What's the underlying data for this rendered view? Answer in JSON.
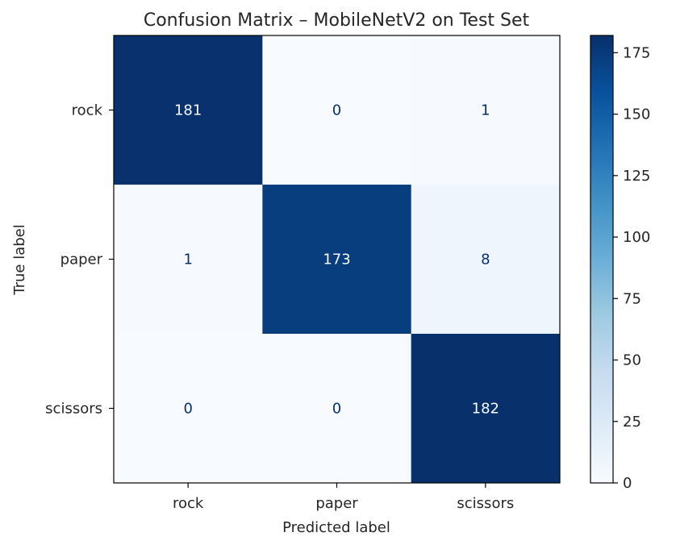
{
  "chart_data": {
    "type": "heatmap",
    "title": "Confusion Matrix – MobileNetV2 on Test Set",
    "xlabel": "Predicted label",
    "ylabel": "True label",
    "x_categories": [
      "rock",
      "paper",
      "scissors"
    ],
    "y_categories": [
      "rock",
      "paper",
      "scissors"
    ],
    "matrix": [
      [
        181,
        0,
        1
      ],
      [
        1,
        173,
        8
      ],
      [
        0,
        0,
        182
      ]
    ],
    "colormap": "Blues",
    "colorbar": {
      "min": 0,
      "max": 182,
      "ticks": [
        0,
        25,
        50,
        75,
        100,
        125,
        150,
        175
      ]
    }
  },
  "colors": {
    "low": "#f7fbff",
    "high": "#08306b",
    "text_light": "#f7fbff",
    "text_dark": "#08306b"
  }
}
